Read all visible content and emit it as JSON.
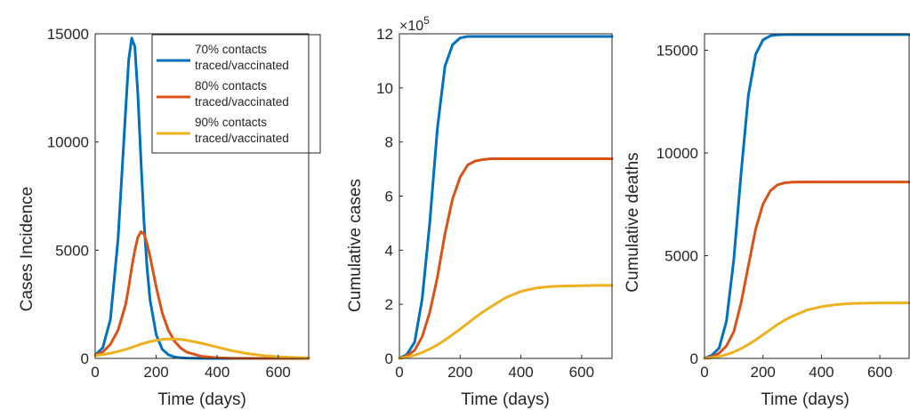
{
  "chart_data": [
    {
      "type": "line",
      "title": "",
      "xlabel": "Time (days)",
      "ylabel": "Cases Incidence",
      "xlim": [
        0,
        700
      ],
      "ylim": [
        0,
        15000
      ],
      "xticks": [
        0,
        200,
        400,
        600
      ],
      "yticks": [
        0,
        5000,
        10000,
        15000
      ],
      "x": [
        0,
        25,
        50,
        75,
        100,
        110,
        120,
        130,
        140,
        150,
        160,
        170,
        180,
        200,
        220,
        240,
        260,
        280,
        300,
        350,
        400,
        450,
        500,
        550,
        600,
        650,
        700
      ],
      "series": [
        {
          "name": "70% contacts traced/vaccinated",
          "color": "#0072BD",
          "values": [
            150,
            500,
            1800,
            5500,
            11500,
            13800,
            14800,
            14400,
            12200,
            9200,
            6300,
            4200,
            2700,
            1100,
            420,
            170,
            70,
            30,
            15,
            5,
            2,
            1,
            0,
            0,
            0,
            0,
            0
          ]
        },
        {
          "name": "80% contacts traced/vaccinated",
          "color": "#D95319",
          "values": [
            150,
            300,
            650,
            1300,
            2500,
            3300,
            4200,
            5000,
            5600,
            5850,
            5750,
            5300,
            4700,
            3300,
            2100,
            1300,
            800,
            480,
            290,
            90,
            30,
            10,
            4,
            2,
            1,
            0,
            0
          ]
        },
        {
          "name": "90% contacts traced/vaccinated",
          "color": "#EDB120",
          "values": [
            130,
            180,
            240,
            320,
            420,
            460,
            510,
            560,
            610,
            660,
            700,
            740,
            780,
            840,
            880,
            900,
            900,
            880,
            840,
            700,
            520,
            350,
            220,
            130,
            80,
            45,
            25
          ]
        }
      ],
      "legend": {
        "position": "top-right",
        "entries": [
          {
            "line1": "70% contacts",
            "line2": "traced/vaccinated",
            "color": "#0072BD"
          },
          {
            "line1": "80% contacts",
            "line2": "traced/vaccinated",
            "color": "#D95319"
          },
          {
            "line1": "90% contacts",
            "line2": "traced/vaccinated",
            "color": "#EDB120"
          }
        ]
      }
    },
    {
      "type": "line",
      "title": "",
      "xlabel": "Time (days)",
      "ylabel": "Cumulative cases",
      "exponent_base": "×10",
      "exponent_power": "5",
      "xlim": [
        0,
        700
      ],
      "ylim": [
        0,
        12
      ],
      "xticks": [
        0,
        200,
        400,
        600
      ],
      "yticks": [
        0,
        2,
        4,
        6,
        8,
        10,
        12
      ],
      "x": [
        0,
        25,
        50,
        75,
        100,
        125,
        150,
        175,
        200,
        225,
        250,
        275,
        300,
        350,
        400,
        450,
        500,
        550,
        600,
        650,
        700
      ],
      "series": [
        {
          "name": "70% contacts traced/vaccinated",
          "color": "#0072BD",
          "values": [
            0,
            0.15,
            0.6,
            2.2,
            5.0,
            8.5,
            10.8,
            11.6,
            11.85,
            11.9,
            11.9,
            11.9,
            11.9,
            11.9,
            11.9,
            11.9,
            11.9,
            11.9,
            11.9,
            11.9,
            11.9
          ]
        },
        {
          "name": "80% contacts traced/vaccinated",
          "color": "#D95319",
          "values": [
            0,
            0.1,
            0.3,
            0.8,
            1.7,
            3.0,
            4.6,
            5.9,
            6.7,
            7.15,
            7.3,
            7.35,
            7.38,
            7.38,
            7.38,
            7.38,
            7.38,
            7.38,
            7.38,
            7.38,
            7.38
          ]
        },
        {
          "name": "90% contacts traced/vaccinated",
          "color": "#EDB120",
          "values": [
            0,
            0.05,
            0.12,
            0.22,
            0.35,
            0.5,
            0.68,
            0.88,
            1.08,
            1.3,
            1.52,
            1.72,
            1.9,
            2.25,
            2.48,
            2.6,
            2.66,
            2.68,
            2.69,
            2.7,
            2.7
          ]
        }
      ]
    },
    {
      "type": "line",
      "title": "",
      "xlabel": "Time (days)",
      "ylabel": "Cumulative deaths",
      "xlim": [
        0,
        700
      ],
      "ylim": [
        0,
        15800
      ],
      "xticks": [
        0,
        200,
        400,
        600
      ],
      "yticks": [
        0,
        5000,
        10000,
        15000
      ],
      "x": [
        0,
        25,
        50,
        75,
        100,
        125,
        150,
        175,
        200,
        225,
        250,
        275,
        300,
        350,
        400,
        450,
        500,
        550,
        600,
        650,
        700
      ],
      "series": [
        {
          "name": "70% contacts traced/vaccinated",
          "color": "#0072BD",
          "values": [
            0,
            150,
            500,
            1800,
            4800,
            9000,
            12800,
            14800,
            15500,
            15700,
            15750,
            15760,
            15760,
            15760,
            15760,
            15760,
            15760,
            15760,
            15760,
            15760,
            15760
          ]
        },
        {
          "name": "80% contacts traced/vaccinated",
          "color": "#D95319",
          "values": [
            0,
            80,
            250,
            600,
            1300,
            2700,
            4500,
            6300,
            7500,
            8150,
            8450,
            8550,
            8580,
            8590,
            8590,
            8590,
            8590,
            8590,
            8590,
            8590,
            8590
          ]
        },
        {
          "name": "90% contacts traced/vaccinated",
          "color": "#EDB120",
          "values": [
            0,
            30,
            90,
            180,
            310,
            480,
            680,
            900,
            1150,
            1400,
            1650,
            1870,
            2050,
            2350,
            2520,
            2620,
            2670,
            2690,
            2700,
            2700,
            2700
          ]
        }
      ]
    }
  ]
}
